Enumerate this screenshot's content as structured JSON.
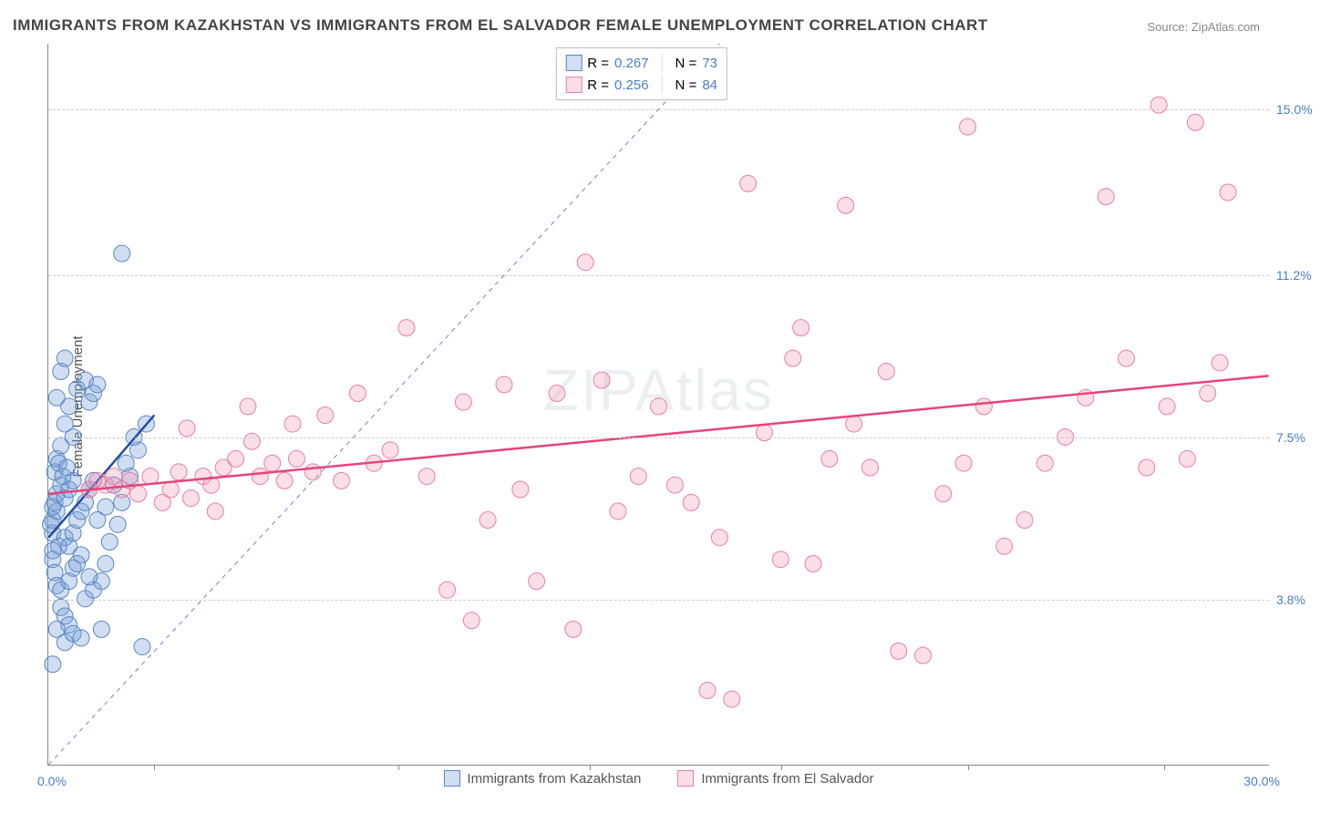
{
  "title": "IMMIGRANTS FROM KAZAKHSTAN VS IMMIGRANTS FROM EL SALVADOR FEMALE UNEMPLOYMENT CORRELATION CHART",
  "source": "Source: ZipAtlas.com",
  "ylabel": "Female Unemployment",
  "watermark": "ZIPAtlas",
  "chart": {
    "type": "scatter",
    "xlim": [
      0,
      30
    ],
    "ylim": [
      0,
      16.5
    ],
    "x_min_label": "0.0%",
    "x_max_label": "30.0%",
    "y_ticks": [
      3.8,
      7.5,
      11.2,
      15.0
    ],
    "y_tick_labels": [
      "3.8%",
      "7.5%",
      "11.2%",
      "15.0%"
    ],
    "x_ticks": [
      2.6,
      8.6,
      13.3,
      18.0,
      22.6,
      27.4
    ],
    "background_color": "#ffffff",
    "grid_color": "#cccccc",
    "axis_color": "#888888",
    "marker_radius": 9,
    "diagonal_line_color": "#6a88c0",
    "series": [
      {
        "name": "Immigrants from Kazakhstan",
        "fill": "rgba(120,160,215,0.35)",
        "stroke": "#5a86c4",
        "trend_color": "#1f4fa0",
        "trend": {
          "x1": 0,
          "y1": 5.2,
          "x2": 2.6,
          "y2": 8.0
        },
        "R_label": "R =",
        "R_value": "0.267",
        "N_label": "N =",
        "N_value": "73",
        "points": [
          [
            0.1,
            5.3
          ],
          [
            0.1,
            5.6
          ],
          [
            0.2,
            5.8
          ],
          [
            0.15,
            6.0
          ],
          [
            0.2,
            6.2
          ],
          [
            0.3,
            6.4
          ],
          [
            0.25,
            5.0
          ],
          [
            0.1,
            4.7
          ],
          [
            0.15,
            4.4
          ],
          [
            0.2,
            4.1
          ],
          [
            0.3,
            4.0
          ],
          [
            0.05,
            5.5
          ],
          [
            0.1,
            5.9
          ],
          [
            0.4,
            6.1
          ],
          [
            0.5,
            6.3
          ],
          [
            0.6,
            6.5
          ],
          [
            0.4,
            5.2
          ],
          [
            0.5,
            5.0
          ],
          [
            0.6,
            5.3
          ],
          [
            0.7,
            5.6
          ],
          [
            0.8,
            5.8
          ],
          [
            0.9,
            6.0
          ],
          [
            1.0,
            6.3
          ],
          [
            1.1,
            6.5
          ],
          [
            0.3,
            3.6
          ],
          [
            0.4,
            3.4
          ],
          [
            0.5,
            3.2
          ],
          [
            0.9,
            3.8
          ],
          [
            1.1,
            4.0
          ],
          [
            1.3,
            4.2
          ],
          [
            1.4,
            4.6
          ],
          [
            1.5,
            5.1
          ],
          [
            1.7,
            5.5
          ],
          [
            1.8,
            6.0
          ],
          [
            2.0,
            6.6
          ],
          [
            2.2,
            7.2
          ],
          [
            2.4,
            7.8
          ],
          [
            0.2,
            7.0
          ],
          [
            0.3,
            7.3
          ],
          [
            0.4,
            7.8
          ],
          [
            0.5,
            8.2
          ],
          [
            0.7,
            8.6
          ],
          [
            0.9,
            8.8
          ],
          [
            1.0,
            8.3
          ],
          [
            1.1,
            8.5
          ],
          [
            1.2,
            8.7
          ],
          [
            0.3,
            9.0
          ],
          [
            0.4,
            9.3
          ],
          [
            0.2,
            8.4
          ],
          [
            0.6,
            7.5
          ],
          [
            1.8,
            11.7
          ],
          [
            0.15,
            6.7
          ],
          [
            0.25,
            6.9
          ],
          [
            0.35,
            6.6
          ],
          [
            0.45,
            6.8
          ],
          [
            0.2,
            3.1
          ],
          [
            0.4,
            2.8
          ],
          [
            0.6,
            4.5
          ],
          [
            0.8,
            4.8
          ],
          [
            1.0,
            4.3
          ],
          [
            1.2,
            5.6
          ],
          [
            1.4,
            5.9
          ],
          [
            0.1,
            2.3
          ],
          [
            0.6,
            3.0
          ],
          [
            1.6,
            6.4
          ],
          [
            1.9,
            6.9
          ],
          [
            2.1,
            7.5
          ],
          [
            2.3,
            2.7
          ],
          [
            1.3,
            3.1
          ],
          [
            0.8,
            2.9
          ],
          [
            0.5,
            4.2
          ],
          [
            0.7,
            4.6
          ],
          [
            0.1,
            4.9
          ]
        ]
      },
      {
        "name": "Immigrants from El Salvador",
        "fill": "rgba(240,150,175,0.30)",
        "stroke": "#e97fa1",
        "trend_color": "#e6447a",
        "trend": {
          "x1": 0,
          "y1": 6.2,
          "x2": 30,
          "y2": 8.9
        },
        "R_label": "R =",
        "R_value": "0.256",
        "N_label": "N =",
        "N_value": "84",
        "points": [
          [
            1.0,
            6.3
          ],
          [
            1.2,
            6.5
          ],
          [
            1.4,
            6.4
          ],
          [
            1.6,
            6.6
          ],
          [
            1.8,
            6.3
          ],
          [
            2.0,
            6.5
          ],
          [
            2.2,
            6.2
          ],
          [
            2.5,
            6.6
          ],
          [
            2.8,
            6.0
          ],
          [
            3.0,
            6.3
          ],
          [
            3.2,
            6.7
          ],
          [
            3.5,
            6.1
          ],
          [
            3.8,
            6.6
          ],
          [
            4.0,
            6.4
          ],
          [
            4.3,
            6.8
          ],
          [
            4.6,
            7.0
          ],
          [
            4.9,
            8.2
          ],
          [
            5.2,
            6.6
          ],
          [
            5.5,
            6.9
          ],
          [
            5.8,
            6.5
          ],
          [
            6.1,
            7.0
          ],
          [
            6.5,
            6.7
          ],
          [
            6.8,
            8.0
          ],
          [
            7.2,
            6.5
          ],
          [
            7.6,
            8.5
          ],
          [
            8.0,
            6.9
          ],
          [
            8.4,
            7.2
          ],
          [
            8.8,
            10.0
          ],
          [
            9.3,
            6.6
          ],
          [
            9.8,
            4.0
          ],
          [
            10.2,
            8.3
          ],
          [
            10.4,
            3.3
          ],
          [
            10.8,
            5.6
          ],
          [
            11.2,
            8.7
          ],
          [
            11.6,
            6.3
          ],
          [
            12.0,
            4.2
          ],
          [
            12.5,
            8.5
          ],
          [
            12.9,
            3.1
          ],
          [
            13.2,
            11.5
          ],
          [
            13.6,
            8.8
          ],
          [
            14.0,
            5.8
          ],
          [
            14.5,
            6.6
          ],
          [
            15.0,
            8.2
          ],
          [
            15.4,
            6.4
          ],
          [
            15.8,
            6.0
          ],
          [
            16.2,
            1.7
          ],
          [
            16.5,
            5.2
          ],
          [
            16.8,
            1.5
          ],
          [
            17.2,
            13.3
          ],
          [
            17.6,
            7.6
          ],
          [
            18.0,
            4.7
          ],
          [
            18.3,
            9.3
          ],
          [
            18.5,
            10.0
          ],
          [
            18.8,
            4.6
          ],
          [
            19.2,
            7.0
          ],
          [
            19.8,
            7.8
          ],
          [
            19.6,
            12.8
          ],
          [
            20.2,
            6.8
          ],
          [
            20.6,
            9.0
          ],
          [
            20.9,
            2.6
          ],
          [
            21.5,
            2.5
          ],
          [
            22.0,
            6.2
          ],
          [
            22.5,
            6.9
          ],
          [
            22.6,
            14.6
          ],
          [
            23.0,
            8.2
          ],
          [
            23.5,
            5.0
          ],
          [
            24.0,
            5.6
          ],
          [
            24.5,
            6.9
          ],
          [
            25.0,
            7.5
          ],
          [
            25.5,
            8.4
          ],
          [
            26.0,
            13.0
          ],
          [
            26.5,
            9.3
          ],
          [
            27.0,
            6.8
          ],
          [
            27.3,
            15.1
          ],
          [
            27.5,
            8.2
          ],
          [
            28.0,
            7.0
          ],
          [
            28.2,
            14.7
          ],
          [
            28.5,
            8.5
          ],
          [
            28.8,
            9.2
          ],
          [
            29.0,
            13.1
          ],
          [
            3.4,
            7.7
          ],
          [
            4.1,
            5.8
          ],
          [
            5.0,
            7.4
          ],
          [
            6.0,
            7.8
          ]
        ]
      }
    ]
  },
  "colors": {
    "title": "#444444",
    "source": "#888888",
    "tick_label": "#4a7ec9",
    "text": "#555555"
  }
}
